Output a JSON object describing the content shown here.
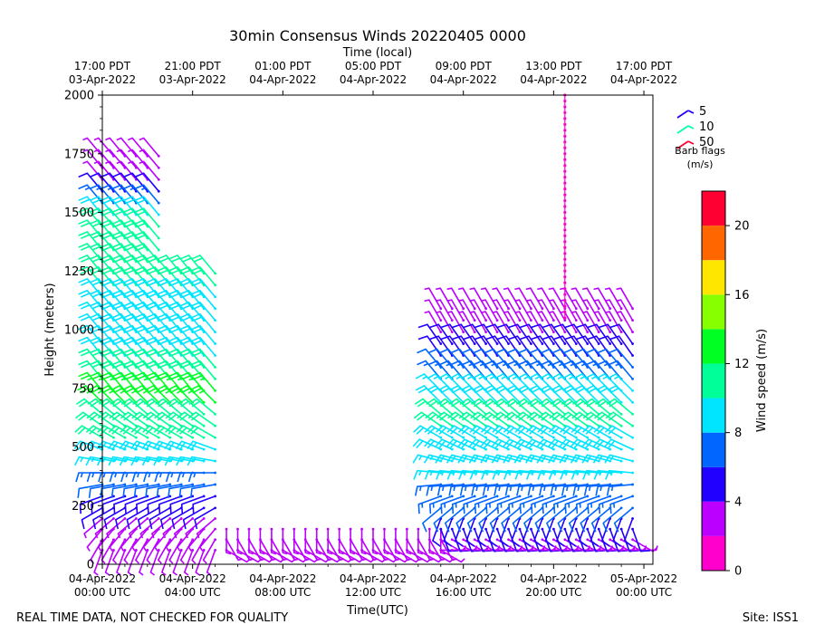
{
  "chart_data": {
    "type": "wind-barb-profile",
    "title": "30min Consensus Winds 20220405 0000",
    "xlabel_top": "Time (local)",
    "xlabel": "Time(UTC)",
    "ylabel": "Height (meters)",
    "ylim": [
      0,
      2000
    ],
    "xlim_hours_utc": [
      0,
      24.4
    ],
    "yticks": [
      0,
      250,
      500,
      750,
      1000,
      1250,
      1500,
      1750,
      2000
    ],
    "xticks_bottom": [
      {
        "hour": 0,
        "line1": "04-Apr-2022",
        "line2": "00:00 UTC"
      },
      {
        "hour": 4,
        "line1": "04-Apr-2022",
        "line2": "04:00 UTC"
      },
      {
        "hour": 8,
        "line1": "04-Apr-2022",
        "line2": "08:00 UTC"
      },
      {
        "hour": 12,
        "line1": "04-Apr-2022",
        "line2": "12:00 UTC"
      },
      {
        "hour": 16,
        "line1": "04-Apr-2022",
        "line2": "16:00 UTC"
      },
      {
        "hour": 20,
        "line1": "04-Apr-2022",
        "line2": "20:00 UTC"
      },
      {
        "hour": 24,
        "line1": "05-Apr-2022",
        "line2": "00:00 UTC"
      }
    ],
    "xticks_top": [
      {
        "hour": 0,
        "line1": "17:00 PDT",
        "line2": "03-Apr-2022"
      },
      {
        "hour": 4,
        "line1": "21:00 PDT",
        "line2": "03-Apr-2022"
      },
      {
        "hour": 8,
        "line1": "01:00 PDT",
        "line2": "04-Apr-2022"
      },
      {
        "hour": 12,
        "line1": "05:00 PDT",
        "line2": "04-Apr-2022"
      },
      {
        "hour": 16,
        "line1": "09:00 PDT",
        "line2": "04-Apr-2022"
      },
      {
        "hour": 20,
        "line1": "13:00 PDT",
        "line2": "04-Apr-2022"
      },
      {
        "hour": 24,
        "line1": "17:00 PDT",
        "line2": "04-Apr-2022"
      }
    ],
    "barb_legend": {
      "items": [
        {
          "label": "5",
          "color": "#2200ff"
        },
        {
          "label": "10",
          "color": "#00ffaa"
        },
        {
          "label": "50",
          "color": "#ff0033"
        }
      ],
      "title1": "Barb flags",
      "title2": "(m/s)"
    },
    "colorbar": {
      "label": "Wind speed (m/s)",
      "range": [
        0,
        22
      ],
      "ticks": [
        0,
        4,
        8,
        12,
        16,
        20
      ],
      "bins": [
        {
          "from": 0,
          "to": 2,
          "color": "#ff00cc"
        },
        {
          "from": 2,
          "to": 4,
          "color": "#bb00ff"
        },
        {
          "from": 4,
          "to": 6,
          "color": "#2200ff"
        },
        {
          "from": 6,
          "to": 8,
          "color": "#0066ff"
        },
        {
          "from": 8,
          "to": 10,
          "color": "#00e5ff"
        },
        {
          "from": 10,
          "to": 12,
          "color": "#00ff99"
        },
        {
          "from": 12,
          "to": 14,
          "color": "#00ff22"
        },
        {
          "from": 14,
          "to": 16,
          "color": "#88ff00"
        },
        {
          "from": 16,
          "to": 18,
          "color": "#ffe600"
        },
        {
          "from": 18,
          "to": 20,
          "color": "#ff6600"
        },
        {
          "from": 20,
          "to": 22,
          "color": "#ff0033"
        }
      ]
    },
    "gate_heights": [
      60,
      105,
      150,
      195,
      240,
      290,
      340,
      390,
      440,
      490,
      540,
      590,
      640,
      690,
      740,
      790,
      840,
      890,
      940,
      990,
      1040,
      1090,
      1140,
      1190,
      1240,
      1290,
      1340,
      1390,
      1440,
      1490,
      1540,
      1590,
      1640,
      1690,
      1740
    ],
    "series": [
      {
        "name": "night_profiles",
        "hours": [
          0,
          0.5,
          1,
          1.5,
          2,
          2.5,
          3,
          3.5,
          4,
          4.5,
          5
        ],
        "low_gate_count": 5,
        "top_gate_count": 35,
        "top_gate_from_hour": 3,
        "top_gate_after_hour_count": 25,
        "speed_by_gate": [
          2,
          3,
          3,
          3,
          4,
          5,
          6,
          7,
          8,
          9,
          10,
          11,
          11,
          12,
          12,
          11,
          10,
          9,
          9,
          9,
          9,
          9,
          9,
          10,
          10,
          10,
          11,
          11,
          10,
          9,
          7,
          5,
          3,
          2,
          2
        ],
        "dir_deg_by_gate": [
          200,
          210,
          220,
          230,
          240,
          250,
          260,
          270,
          280,
          290,
          300,
          305,
          310,
          315,
          320,
          320,
          320,
          320,
          320,
          320,
          320,
          320,
          320,
          320,
          320,
          320,
          320,
          320,
          320,
          320,
          320,
          320,
          320,
          320,
          320
        ]
      },
      {
        "name": "surface_gaps",
        "hours": [
          5.5,
          6,
          6.5,
          7,
          7.5,
          8,
          8.5,
          9,
          9.5,
          10,
          10.5,
          11,
          11.5,
          12,
          12.5,
          13,
          13.5,
          14,
          14.5,
          15
        ],
        "gate_count": 3,
        "speed_by_gate": [
          3,
          2,
          2
        ],
        "dir_deg_by_gate": [
          120,
          150,
          180
        ]
      },
      {
        "name": "day_profiles",
        "hours": [
          15,
          15.5,
          16,
          16.5,
          17,
          17.5,
          18,
          18.5,
          19,
          19.5,
          20,
          20.5,
          21,
          21.5,
          22,
          22.5,
          23,
          23.5
        ],
        "gate_count": 22,
        "speed_by_gate": [
          3,
          3,
          4,
          5,
          6,
          7,
          7,
          8,
          8,
          9,
          9,
          10,
          10,
          9,
          8,
          7,
          6,
          5,
          4,
          3,
          2,
          2
        ],
        "dir_deg_by_gate": [
          90,
          120,
          160,
          200,
          230,
          250,
          265,
          275,
          285,
          295,
          300,
          305,
          310,
          315,
          315,
          320,
          320,
          325,
          325,
          330,
          330,
          330
        ]
      },
      {
        "name": "vertical_column",
        "hours": [
          20.5
        ],
        "from_height": 1050,
        "to_height": 2000,
        "speed": 1
      }
    ]
  },
  "footer": {
    "left": "REAL TIME DATA, NOT CHECKED FOR QUALITY",
    "right": "Site: ISS1"
  }
}
